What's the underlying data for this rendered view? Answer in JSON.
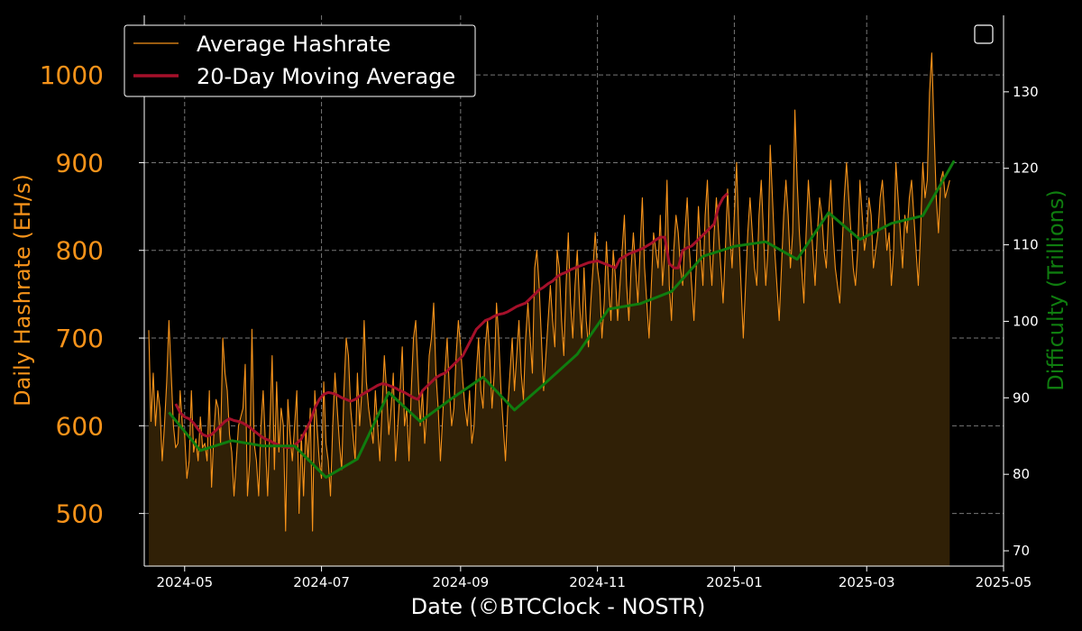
{
  "chart_data": {
    "type": "line",
    "xlabel": "Date (©BTCClock - NOSTR)",
    "ylabel": "Daily Hashrate (EH/s)",
    "y2label": "Difficulty (Trillions)",
    "x_range": [
      "2024-04-13",
      "2025-05-01"
    ],
    "x_ticks": [
      "2024-05",
      "2024-07",
      "2024-09",
      "2024-11",
      "2025-01",
      "2025-03",
      "2025-05"
    ],
    "ylim": [
      440,
      1068
    ],
    "y_ticks": [
      500,
      600,
      700,
      800,
      900,
      1000
    ],
    "y2lim": [
      68,
      140
    ],
    "y2_ticks": [
      70,
      80,
      90,
      100,
      110,
      120,
      130
    ],
    "grid": true,
    "legend_position": "top-left",
    "legend": [
      "Average Hashrate",
      "20-Day Moving Average"
    ],
    "colors": {
      "hashrate": "#f7931a",
      "ma": "#a5102a",
      "difficulty": "#0f7d0f",
      "fill": "#302006"
    },
    "series": [
      {
        "name": "Average Hashrate",
        "start_date": "2024-04-15",
        "step_days": 1,
        "values": [
          709,
          605,
          660,
          600,
          640,
          620,
          560,
          600,
          650,
          720,
          660,
          600,
          575,
          580,
          640,
          600,
          590,
          540,
          560,
          640,
          570,
          585,
          560,
          610,
          575,
          580,
          560,
          640,
          530,
          590,
          630,
          620,
          580,
          700,
          660,
          640,
          590,
          570,
          520,
          560,
          600,
          610,
          620,
          670,
          520,
          560,
          710,
          580,
          560,
          520,
          600,
          640,
          580,
          520,
          600,
          680,
          550,
          650,
          570,
          620,
          600,
          480,
          630,
          590,
          560,
          600,
          640,
          500,
          590,
          520,
          600,
          560,
          620,
          480,
          640,
          600,
          560,
          540,
          650,
          580,
          560,
          520,
          600,
          660,
          620,
          580,
          550,
          640,
          700,
          680,
          620,
          590,
          560,
          660,
          600,
          640,
          720,
          650,
          620,
          600,
          580,
          640,
          600,
          560,
          620,
          680,
          640,
          590,
          620,
          660,
          560,
          600,
          640,
          690,
          600,
          620,
          560,
          640,
          700,
          720,
          660,
          600,
          640,
          580,
          620,
          680,
          700,
          740,
          660,
          620,
          560,
          610,
          660,
          700,
          640,
          600,
          620,
          680,
          720,
          690,
          650,
          620,
          600,
          640,
          580,
          600,
          660,
          700,
          640,
          620,
          690,
          720,
          680,
          620,
          660,
          740,
          700,
          640,
          600,
          560,
          620,
          660,
          700,
          640,
          680,
          720,
          660,
          630,
          700,
          740,
          700,
          660,
          780,
          800,
          760,
          700,
          640,
          680,
          720,
          760,
          720,
          690,
          800,
          780,
          720,
          680,
          760,
          820,
          740,
          700,
          760,
          800,
          740,
          700,
          780,
          720,
          690,
          740,
          780,
          820,
          780,
          760,
          700,
          740,
          810,
          760,
          720,
          800,
          770,
          720,
          760,
          800,
          840,
          760,
          720,
          780,
          820,
          780,
          740,
          800,
          860,
          780,
          740,
          700,
          760,
          820,
          800,
          780,
          840,
          760,
          800,
          880,
          760,
          720,
          800,
          840,
          820,
          780,
          760,
          820,
          860,
          800,
          760,
          720,
          780,
          850,
          800,
          760,
          840,
          880,
          800,
          760,
          820,
          860,
          820,
          780,
          740,
          800,
          870,
          820,
          780,
          840,
          900,
          820,
          760,
          700,
          760,
          820,
          860,
          820,
          780,
          760,
          840,
          880,
          820,
          760,
          800,
          920,
          860,
          800,
          760,
          720,
          780,
          840,
          880,
          840,
          780,
          820,
          960,
          880,
          820,
          780,
          740,
          820,
          880,
          840,
          800,
          760,
          820,
          860,
          840,
          800,
          780,
          840,
          880,
          820,
          780,
          760,
          740,
          800,
          860,
          900,
          860,
          820,
          780,
          760,
          800,
          880,
          840,
          800,
          820,
          860,
          840,
          780,
          800,
          820,
          860,
          880,
          840,
          800,
          820,
          760,
          800,
          900,
          860,
          820,
          780,
          840,
          820,
          860,
          880,
          840,
          800,
          760,
          820,
          900,
          860,
          880,
          980,
          1025,
          940,
          860,
          820,
          880,
          890,
          860,
          870,
          880
        ]
      },
      {
        "name": "20-Day Moving Average",
        "start_date": "2024-04-27",
        "step_days": 2,
        "values": [
          625,
          615,
          610,
          608,
          603,
          596,
          590,
          588,
          590,
          595,
          600,
          605,
          608,
          606,
          605,
          603,
          600,
          596,
          592,
          588,
          585,
          583,
          580,
          578,
          576,
          575,
          576,
          580,
          585,
          595,
          605,
          620,
          630,
          636,
          638,
          637,
          635,
          632,
          630,
          628,
          630,
          634,
          637,
          640,
          643,
          646,
          648,
          647,
          645,
          643,
          640,
          638,
          635,
          632,
          630,
          640,
          645,
          650,
          655,
          658,
          660,
          665,
          670,
          675,
          680,
          690,
          700,
          710,
          715,
          720,
          722,
          725,
          727,
          728,
          730,
          733,
          736,
          738,
          740,
          745,
          750,
          755,
          758,
          762,
          765,
          770,
          773,
          775,
          778,
          780,
          782,
          784,
          786,
          787,
          788,
          786,
          784,
          782,
          780,
          790,
          793,
          796,
          798,
          800,
          802,
          805,
          808,
          812,
          815,
          815,
          785,
          780,
          780,
          800,
          803,
          805,
          810,
          815,
          820,
          825,
          830,
          850,
          860,
          865
        ]
      },
      {
        "name": "Difficulty",
        "dates": [
          "2024-04-24",
          "2024-05-08",
          "2024-05-22",
          "2024-06-05",
          "2024-06-19",
          "2024-07-03",
          "2024-07-17",
          "2024-07-31",
          "2024-08-14",
          "2024-08-28",
          "2024-09-11",
          "2024-09-25",
          "2024-10-09",
          "2024-10-23",
          "2024-11-06",
          "2024-11-20",
          "2024-12-04",
          "2024-12-18",
          "2025-01-01",
          "2025-01-15",
          "2025-01-29",
          "2025-02-12",
          "2025-02-26",
          "2025-03-12",
          "2025-03-26",
          "2025-04-09"
        ],
        "values": [
          88.1,
          83.1,
          84.4,
          83.7,
          83.7,
          79.6,
          82.0,
          90.7,
          86.9,
          89.9,
          92.7,
          88.4,
          92.0,
          95.7,
          101.6,
          102.3,
          103.9,
          108.5,
          109.8,
          110.4,
          108.1,
          114.2,
          110.7,
          112.8,
          113.8,
          121.0
        ]
      }
    ]
  }
}
